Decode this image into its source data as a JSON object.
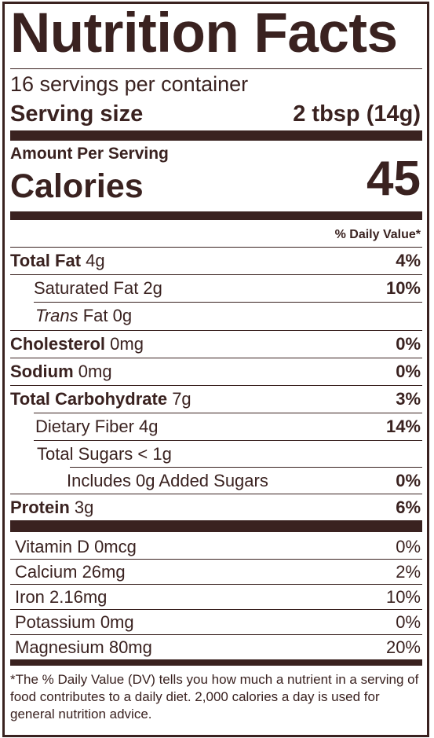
{
  "title": "Nutrition Facts",
  "servings_per_container": "16 servings per container",
  "serving_size": {
    "label": "Serving size",
    "value": "2 tbsp (14g)"
  },
  "amount_per_serving": "Amount Per Serving",
  "calories": {
    "label": "Calories",
    "value": "45"
  },
  "daily_value_header": "% Daily Value*",
  "nutrients": [
    {
      "name": "Total Fat",
      "amount": "4g",
      "dv": "4%"
    },
    {
      "name": "Saturated Fat 2g",
      "dv": "10%"
    },
    {
      "name_italic": "Trans",
      "name_rest": "Fat 0g"
    },
    {
      "name": "Cholesterol",
      "amount": "0mg",
      "dv": "0%"
    },
    {
      "name": "Sodium",
      "amount": "0mg",
      "dv": "0%"
    },
    {
      "name": "Total Carbohydrate",
      "amount": "7g",
      "dv": "3%"
    },
    {
      "name": "Dietary Fiber 4g",
      "dv": "14%"
    },
    {
      "name": "Total Sugars < 1g"
    },
    {
      "name": "Includes 0g Added Sugars",
      "dv": "0%"
    },
    {
      "name": "Protein",
      "amount": "3g",
      "dv": "6%"
    }
  ],
  "vitamins": [
    {
      "name": "Vitamin D 0mcg",
      "dv": "0%"
    },
    {
      "name": "Calcium 26mg",
      "dv": "2%"
    },
    {
      "name": "Iron 2.16mg",
      "dv": "10%"
    },
    {
      "name": "Potassium 0mg",
      "dv": "0%"
    },
    {
      "name": "Magnesium 80mg",
      "dv": "20%"
    }
  ],
  "footnote": "*The % Daily Value (DV) tells you how much a nutrient in a serving of food contributes to a daily diet. 2,000 calories a day is used for general nutrition advice.",
  "colors": {
    "ink": "#3a2220",
    "background": "#ffffff"
  }
}
